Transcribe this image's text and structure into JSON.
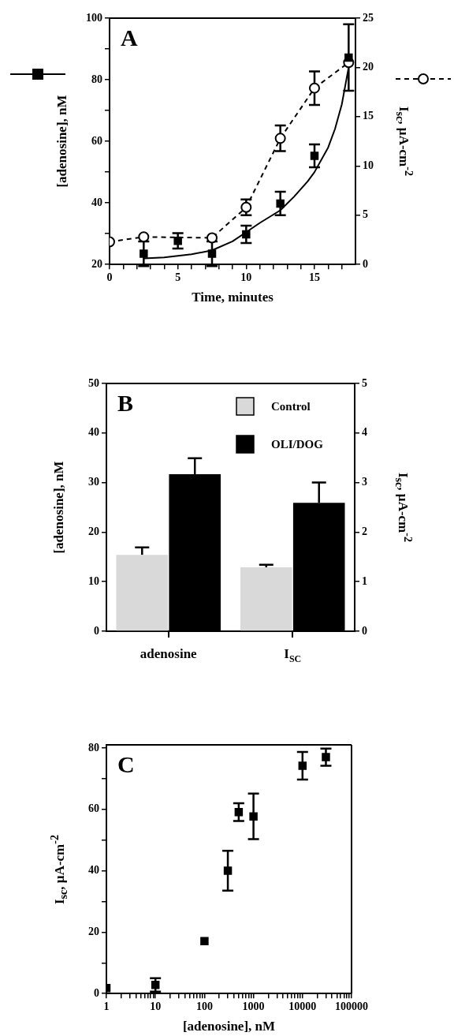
{
  "chart_data": [
    {
      "type": "scatter",
      "annotations": [
        "A"
      ],
      "xlabel": "Time, minutes",
      "ylabel": "[adenosine], nM",
      "y2label": "I$_{sc}$, µA-cm$^{-2}$",
      "legend": false,
      "grid": false,
      "xlim": [
        0,
        18
      ],
      "xticks": [
        0,
        {
          "value": 1,
          "label": null
        },
        {
          "value": 2,
          "label": null
        },
        {
          "value": 3,
          "label": null
        },
        {
          "value": 4,
          "label": null
        },
        5,
        {
          "value": 6,
          "label": null
        },
        {
          "value": 7,
          "label": null
        },
        {
          "value": 8,
          "label": null
        },
        {
          "value": 9,
          "label": null
        },
        10,
        {
          "value": 11,
          "label": null
        },
        {
          "value": 12,
          "label": null
        },
        {
          "value": 13,
          "label": null
        },
        {
          "value": 14,
          "label": null
        },
        15,
        {
          "value": 16,
          "label": null
        },
        {
          "value": 17,
          "label": null
        }
      ],
      "ylim": [
        20,
        100
      ],
      "yticks": [
        20,
        {
          "value": 30,
          "label": null
        },
        40,
        {
          "value": 50,
          "label": null
        },
        60,
        {
          "value": 70,
          "label": null
        },
        80,
        {
          "value": 90,
          "label": null
        },
        100
      ],
      "y2lim": [
        0,
        25
      ],
      "y2ticks": [
        0,
        5,
        10,
        15,
        20,
        25
      ],
      "series": [
        {
          "type": "line",
          "color": "#000000",
          "marker": "none",
          "line_style": "solid",
          "x": [
            2.5,
            4,
            6,
            7.5,
            9,
            10,
            11,
            12.5,
            13.5,
            14.5,
            15,
            16,
            16.5,
            17,
            17.5
          ],
          "values": [
            22,
            22.3,
            23.3,
            24.6,
            27.5,
            30.5,
            33.5,
            37.6,
            42,
            47,
            50,
            58,
            64,
            72,
            84
          ]
        },
        {
          "type": "scatter",
          "color": "#000000",
          "marker": "square",
          "x": [
            2.5,
            5,
            7.5,
            10,
            12.5,
            15,
            17.5
          ],
          "values": [
            23.5,
            27.7,
            23.5,
            29.8,
            39.8,
            55.3,
            87.2
          ],
          "errors": [
            4,
            2.5,
            4,
            2.8,
            3.8,
            3.7,
            10.8
          ]
        },
        {
          "type": "line",
          "color": "#000000",
          "marker": "circle",
          "line_style": "dashed",
          "axis": "y2",
          "x": [
            0,
            2.5,
            7.5,
            10,
            12.5,
            15,
            17.5
          ],
          "values": [
            2.3,
            2.8,
            2.7,
            5.8,
            12.8,
            17.9,
            20.5
          ],
          "errors": [
            null,
            null,
            null,
            0.8,
            1.3,
            1.7,
            null
          ]
        }
      ]
    },
    {
      "type": "bar",
      "annotations": [
        "B"
      ],
      "ylabel": "[adenosine], nM",
      "y2label": "I$_{sc}$, µA-cm$^{-2}$",
      "legend": "top right",
      "grid": false,
      "categories": [
        "adenosine",
        "I$_{SC}$"
      ],
      "ylim": [
        0,
        50
      ],
      "yticks": [
        0,
        10,
        20,
        30,
        40,
        50
      ],
      "y2lim": [
        0,
        5
      ],
      "y2ticks": [
        0,
        1,
        2,
        3,
        4,
        5
      ],
      "series": [
        {
          "name": "Control",
          "color": "#d9d9d9",
          "values": [
            15.4,
            null
          ],
          "errors": [
            [
              15.4,
              16.9
            ],
            null
          ]
        },
        {
          "name": "OLI/DOG",
          "color": "#000000",
          "values": [
            31.7,
            null
          ],
          "errors": [
            [
              31.7,
              34.9
            ],
            null
          ]
        },
        {
          "color": "#d9d9d9",
          "axis": "y2",
          "values": [
            null,
            1.29
          ],
          "errors": [
            null,
            [
              1.29,
              1.34
            ]
          ]
        },
        {
          "color": "#000000",
          "axis": "y2",
          "values": [
            null,
            2.59
          ],
          "errors": [
            null,
            [
              2.59,
              3
            ]
          ]
        }
      ]
    },
    {
      "type": "scatter",
      "annotations": [
        "C"
      ],
      "xlabel": "[adenosine], nM",
      "ylabel": "I$_{sc}$, µA-cm$^{-2}$",
      "legend": false,
      "grid": false,
      "log": "x",
      "marker": "square",
      "xlim": [
        1,
        100000
      ],
      "xticks": [
        1,
        {
          "value": 2,
          "label": null
        },
        {
          "value": 3,
          "label": null
        },
        {
          "value": 4,
          "label": null
        },
        {
          "value": 5,
          "label": null
        },
        {
          "value": 6,
          "label": null
        },
        {
          "value": 7,
          "label": null
        },
        {
          "value": 8,
          "label": null
        },
        {
          "value": 9,
          "label": null
        },
        10,
        {
          "value": 20,
          "label": null
        },
        {
          "value": 30,
          "label": null
        },
        {
          "value": 40,
          "label": null
        },
        {
          "value": 50,
          "label": null
        },
        {
          "value": 60,
          "label": null
        },
        {
          "value": 70,
          "label": null
        },
        {
          "value": 80,
          "label": null
        },
        {
          "value": 90,
          "label": null
        },
        100,
        {
          "value": 200,
          "label": null
        },
        {
          "value": 300,
          "label": null
        },
        {
          "value": 400,
          "label": null
        },
        {
          "value": 500,
          "label": null
        },
        {
          "value": 600,
          "label": null
        },
        {
          "value": 700,
          "label": null
        },
        {
          "value": 800,
          "label": null
        },
        {
          "value": 900,
          "label": null
        },
        1000,
        {
          "value": 2000,
          "label": null
        },
        {
          "value": 3000,
          "label": null
        },
        {
          "value": 4000,
          "label": null
        },
        {
          "value": 5000,
          "label": null
        },
        {
          "value": 6000,
          "label": null
        },
        {
          "value": 7000,
          "label": null
        },
        {
          "value": 8000,
          "label": null
        },
        {
          "value": 9000,
          "label": null
        },
        10000,
        {
          "value": 20000,
          "label": null
        },
        {
          "value": 30000,
          "label": null
        },
        {
          "value": 40000,
          "label": null
        },
        {
          "value": 50000,
          "label": null
        },
        {
          "value": 60000,
          "label": null
        },
        {
          "value": 70000,
          "label": null
        },
        {
          "value": 80000,
          "label": null
        },
        {
          "value": 90000,
          "label": null
        },
        100000
      ],
      "ylim": [
        0,
        81
      ],
      "yticks": [
        0,
        {
          "value": 10,
          "label": null
        },
        20,
        {
          "value": 30,
          "label": null
        },
        40,
        {
          "value": 50,
          "label": null
        },
        60,
        {
          "value": 70,
          "label": null
        },
        80
      ],
      "series": [
        {
          "color": "#000000",
          "x": [
            1,
            10,
            100,
            300,
            500,
            1000,
            10000,
            30000
          ],
          "values": [
            1.8,
            2.8,
            17.1,
            40,
            59.1,
            57.7,
            74.2,
            77
          ],
          "errors": [
            null,
            2.2,
            null,
            6.5,
            2.9,
            7.4,
            4.5,
            2.8
          ]
        }
      ]
    }
  ]
}
